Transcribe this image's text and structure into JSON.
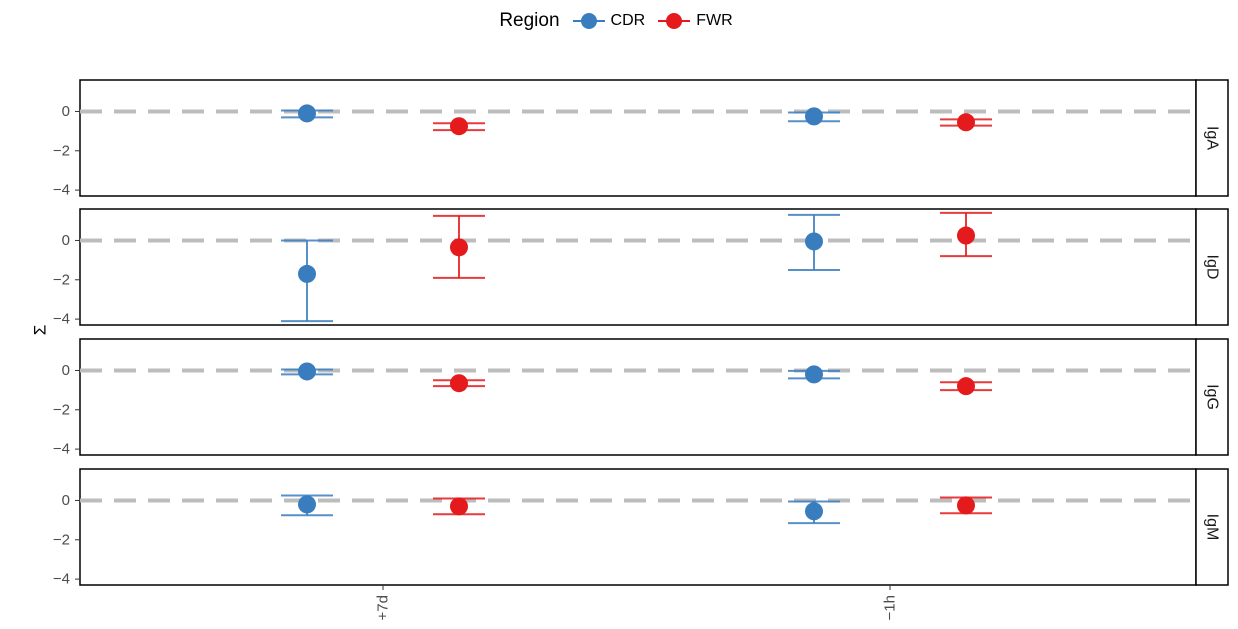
{
  "chart_data": {
    "type": "scatter",
    "subtype": "point-with-error-bars",
    "title": "",
    "xlabel": "",
    "ylabel": "Σ",
    "legend": {
      "title": "Region",
      "placement": "top",
      "entries": [
        {
          "name": "CDR",
          "color": "#3A7DBF"
        },
        {
          "name": "FWR",
          "color": "#E41A1C"
        }
      ]
    },
    "categories": [
      "+7d",
      "−1h"
    ],
    "ylim": [
      -4.3,
      1.6
    ],
    "yticks": [
      0,
      -2,
      -4
    ],
    "ytick_labels": [
      "0",
      "−2",
      "−4"
    ],
    "reference_line": 0,
    "grid": false,
    "facets": [
      {
        "label": "IgA",
        "series": [
          {
            "name": "CDR",
            "points": [
              {
                "x": "+7d",
                "y": -0.1,
                "low": -0.3,
                "high": 0.05
              },
              {
                "x": "−1h",
                "y": -0.25,
                "low": -0.5,
                "high": -0.05
              }
            ]
          },
          {
            "name": "FWR",
            "points": [
              {
                "x": "+7d",
                "y": -0.75,
                "low": -0.95,
                "high": -0.6
              },
              {
                "x": "−1h",
                "y": -0.55,
                "low": -0.72,
                "high": -0.4
              }
            ]
          }
        ]
      },
      {
        "label": "IgD",
        "series": [
          {
            "name": "CDR",
            "points": [
              {
                "x": "+7d",
                "y": -1.7,
                "low": -4.1,
                "high": 0.0
              },
              {
                "x": "−1h",
                "y": -0.05,
                "low": -1.5,
                "high": 1.3
              }
            ]
          },
          {
            "name": "FWR",
            "points": [
              {
                "x": "+7d",
                "y": -0.35,
                "low": -1.9,
                "high": 1.25
              },
              {
                "x": "−1h",
                "y": 0.25,
                "low": -0.8,
                "high": 1.4
              }
            ]
          }
        ]
      },
      {
        "label": "IgG",
        "series": [
          {
            "name": "CDR",
            "points": [
              {
                "x": "+7d",
                "y": -0.05,
                "low": -0.2,
                "high": 0.05
              },
              {
                "x": "−1h",
                "y": -0.2,
                "low": -0.4,
                "high": -0.02
              }
            ]
          },
          {
            "name": "FWR",
            "points": [
              {
                "x": "+7d",
                "y": -0.65,
                "low": -0.8,
                "high": -0.5
              },
              {
                "x": "−1h",
                "y": -0.8,
                "low": -1.0,
                "high": -0.6
              }
            ]
          }
        ]
      },
      {
        "label": "IgM",
        "series": [
          {
            "name": "CDR",
            "points": [
              {
                "x": "+7d",
                "y": -0.2,
                "low": -0.75,
                "high": 0.25
              },
              {
                "x": "−1h",
                "y": -0.55,
                "low": -1.15,
                "high": -0.05
              }
            ]
          },
          {
            "name": "FWR",
            "points": [
              {
                "x": "+7d",
                "y": -0.3,
                "low": -0.7,
                "high": 0.1
              },
              {
                "x": "−1h",
                "y": -0.25,
                "low": -0.65,
                "high": 0.15
              }
            ]
          }
        ]
      }
    ]
  }
}
